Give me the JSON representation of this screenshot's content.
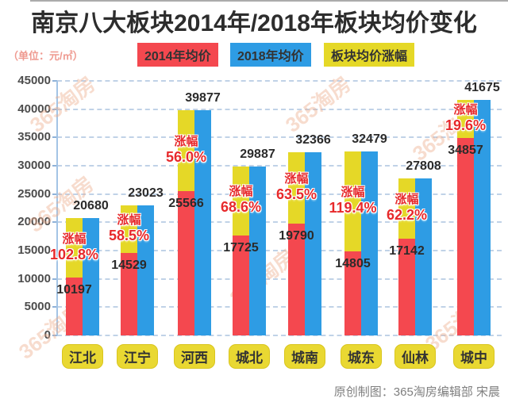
{
  "title": "南京八大板块2014年/2018年板块均价变化",
  "unit_label": "（单位：元/㎡）",
  "legend": [
    {
      "label": "2014年均价",
      "color": "#f4484f"
    },
    {
      "label": "2018年均价",
      "color": "#2e9ce4"
    },
    {
      "label": "板块均价涨幅",
      "color": "#e5d827"
    }
  ],
  "watermark_text": "365淘房",
  "footer": "原创制图：365淘房编辑部 宋晨",
  "colors": {
    "bar_2014": "#f4484f",
    "bar_2018": "#2e9ce4",
    "bar_growth": "#e5d827",
    "growth_text": "#e7292b",
    "pill_bg": "#e9d832",
    "gridline": "#a9c5e2",
    "axis": "#a3c4e5",
    "title_text": "#2d2d2d",
    "unit_text": "#ef9a90",
    "footer_text": "#7f7f7f",
    "watermark": "#eead8d"
  },
  "chart_data": {
    "type": "bar",
    "title": "南京八大板块2014年/2018年板块均价变化",
    "ylabel": "元/㎡",
    "categories": [
      "江北",
      "江宁",
      "河西",
      "城北",
      "城南",
      "城东",
      "仙林",
      "城中"
    ],
    "series": [
      {
        "name": "2014年均价",
        "values": [
          10197,
          14529,
          25566,
          17725,
          19790,
          14805,
          17142,
          34857
        ]
      },
      {
        "name": "2018年均价",
        "values": [
          20680,
          23023,
          39877,
          29887,
          32366,
          32479,
          27808,
          41675
        ]
      },
      {
        "name": "板块均价涨幅",
        "values": [
          "102.8%",
          "58.5%",
          "56.0%",
          "68.6%",
          "63.5%",
          "119.4%",
          "62.2%",
          "19.6%"
        ]
      }
    ],
    "growth_label_prefix": "涨幅",
    "ylim": [
      0,
      45000
    ],
    "yticks": [
      0,
      5000,
      10000,
      15000,
      20000,
      25000,
      30000,
      35000,
      40000,
      45000
    ],
    "grid": true,
    "legend_position": "top"
  }
}
